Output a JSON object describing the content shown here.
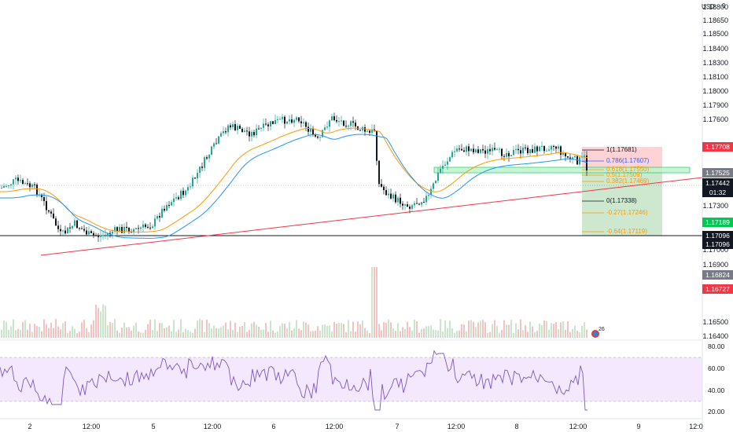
{
  "currency": "USD",
  "currency_badge": "0",
  "price_axis": [
    "1.18800",
    "1.18600",
    "1.18400",
    "1.18300",
    "1.18100",
    "1.18000",
    "1.17900",
    "1.17600",
    "1.17300",
    "1.17000",
    "1.16900",
    "1.16500",
    "1.16400"
  ],
  "price_axis_labels": [
    {
      "v": 1.188,
      "t": "1.18800"
    },
    {
      "v": 1.1865,
      "t": "1.18650"
    },
    {
      "v": 1.185,
      "t": "1.18500"
    },
    {
      "v": 1.184,
      "t": "1.18400"
    },
    {
      "v": 1.183,
      "t": "1.18300"
    },
    {
      "v": 1.181,
      "t": "1.18100"
    },
    {
      "v": 1.18,
      "t": "1.18000"
    },
    {
      "v": 1.179,
      "t": "1.17900"
    },
    {
      "v": 1.176,
      "t": "1.17600"
    },
    {
      "v": 1.173,
      "t": "1.17300"
    },
    {
      "v": 1.17,
      "t": "1.17000"
    },
    {
      "v": 1.169,
      "t": "1.16900"
    },
    {
      "v": 1.165,
      "t": "1.16500"
    },
    {
      "v": 1.164,
      "t": "1.16400"
    }
  ],
  "price_tags": [
    {
      "text": "1.17708",
      "color": "#f23645",
      "v": 1.17708
    },
    {
      "text": "1.17525",
      "color": "#787b86",
      "v": 1.17525
    },
    {
      "text": "1.17442",
      "color": "#131722",
      "v": 1.17442
    },
    {
      "text": "01:32",
      "color": "#131722",
      "v": 1.1741
    },
    {
      "text": "1.17189",
      "color": "#00c853",
      "v": 1.17189
    },
    {
      "text": "1.17096",
      "color": "#131722",
      "v": 1.17096
    },
    {
      "text": "1.17096",
      "color": "#131722",
      "v": 1.17045
    },
    {
      "text": "1.16824",
      "color": "#787b86",
      "v": 1.16824
    },
    {
      "text": "1.16727",
      "color": "#f23645",
      "v": 1.16727
    }
  ],
  "fib_levels": [
    {
      "label": "1(1.17681)",
      "color": "#131722"
    },
    {
      "label": "0.786(1.17607)",
      "color": "#2962ff"
    },
    {
      "label": "0.618(1.17550)",
      "color": "#ff9800"
    },
    {
      "label": "0.5(1.17509)",
      "color": "#ff9800"
    },
    {
      "label": "0.382(1.17469)",
      "color": "#ff9800"
    },
    {
      "label": "0(1.17338)",
      "color": "#131722"
    },
    {
      "label": "-0.27(1.17246)",
      "color": "#ff9800"
    },
    {
      "label": "-0.64(1.17119)",
      "color": "#ff9800"
    }
  ],
  "time_axis": [
    "2",
    "12:00",
    "5",
    "12:00",
    "6",
    "12:00",
    "7",
    "12:00",
    "8",
    "12:00",
    "9",
    "12:0"
  ],
  "rsi_axis": [
    "80.00",
    "60.00",
    "40.00",
    "20.00"
  ],
  "volume_badge": "26",
  "colors": {
    "bull": "#26a69a",
    "bear": "#131722",
    "ema_orange": "#ff9800",
    "ema_blue": "#2196f3",
    "trendline": "#f23645",
    "rsi": "#7e57c2",
    "rsi_band": "#f3e8fd",
    "target_zone": "#c8e6c9",
    "stop_zone": "#ffcdd2"
  }
}
